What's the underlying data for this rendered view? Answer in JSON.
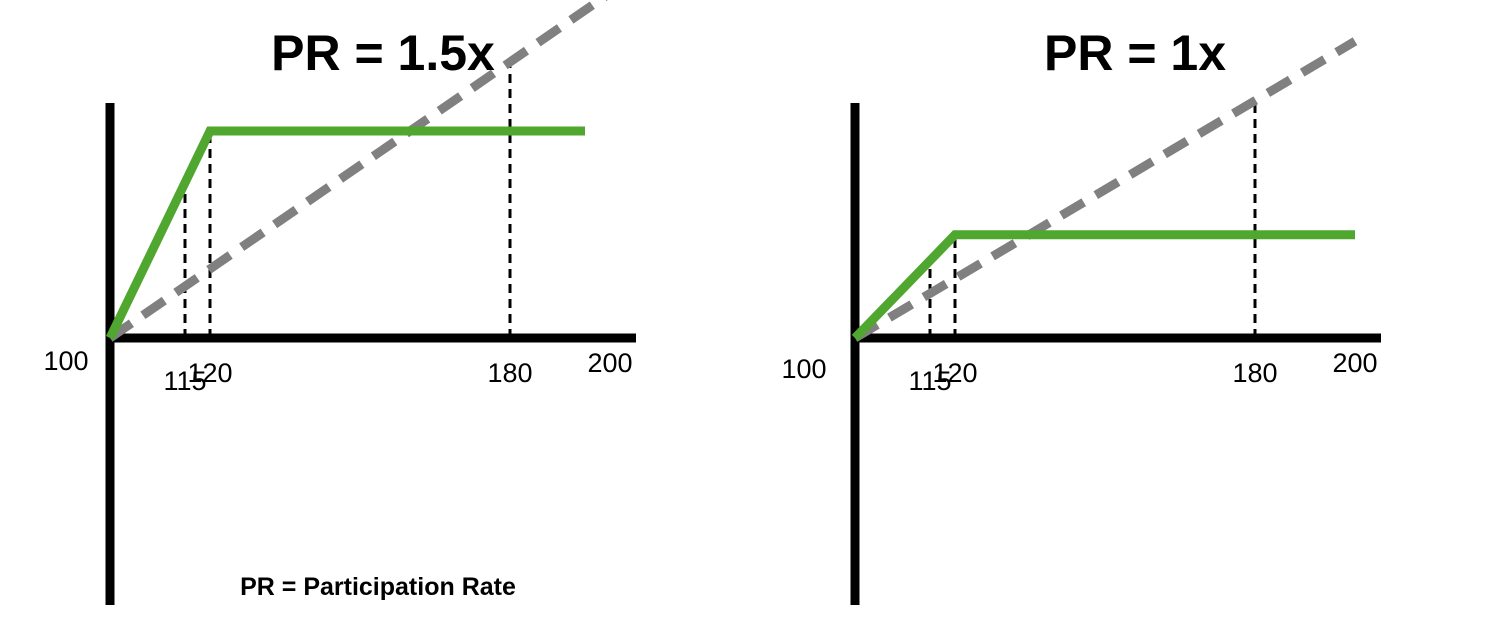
{
  "note": "PR = Participation Rate",
  "colors": {
    "payoff": "#4fa72f",
    "reference": "#808080",
    "axis": "#000000",
    "guide": "#000000"
  },
  "chart_data": [
    {
      "type": "line",
      "title": "PR = 1.5x",
      "xlabel": "",
      "ylabel": "",
      "x_ticks": [
        "115",
        "120",
        "180",
        "200"
      ],
      "origin_label": "100",
      "xlim": [
        100,
        200
      ],
      "ylim": [
        100,
        200
      ],
      "series": [
        {
          "style": "solid",
          "color": "#4fa72f",
          "points": [
            [
              100,
              100
            ],
            [
              120,
              130
            ],
            [
              195,
              130
            ]
          ]
        },
        {
          "style": "dashed",
          "color": "#808080",
          "points": [
            [
              100,
              100
            ],
            [
              200,
              150
            ]
          ]
        }
      ],
      "guides": [
        115,
        120,
        180
      ],
      "grid": false
    },
    {
      "type": "line",
      "title": "PR = 1x",
      "xlabel": "",
      "ylabel": "",
      "x_ticks": [
        "115",
        "120",
        "180",
        "200"
      ],
      "origin_label": "100",
      "xlim": [
        100,
        200
      ],
      "ylim": [
        100,
        200
      ],
      "series": [
        {
          "style": "solid",
          "color": "#4fa72f",
          "points": [
            [
              100,
              100
            ],
            [
              120,
              116
            ],
            [
              200,
              116
            ]
          ]
        },
        {
          "style": "dashed",
          "color": "#808080",
          "points": [
            [
              100,
              100
            ],
            [
              200,
              146
            ]
          ]
        }
      ],
      "guides": [
        115,
        120,
        180
      ],
      "grid": false
    }
  ]
}
